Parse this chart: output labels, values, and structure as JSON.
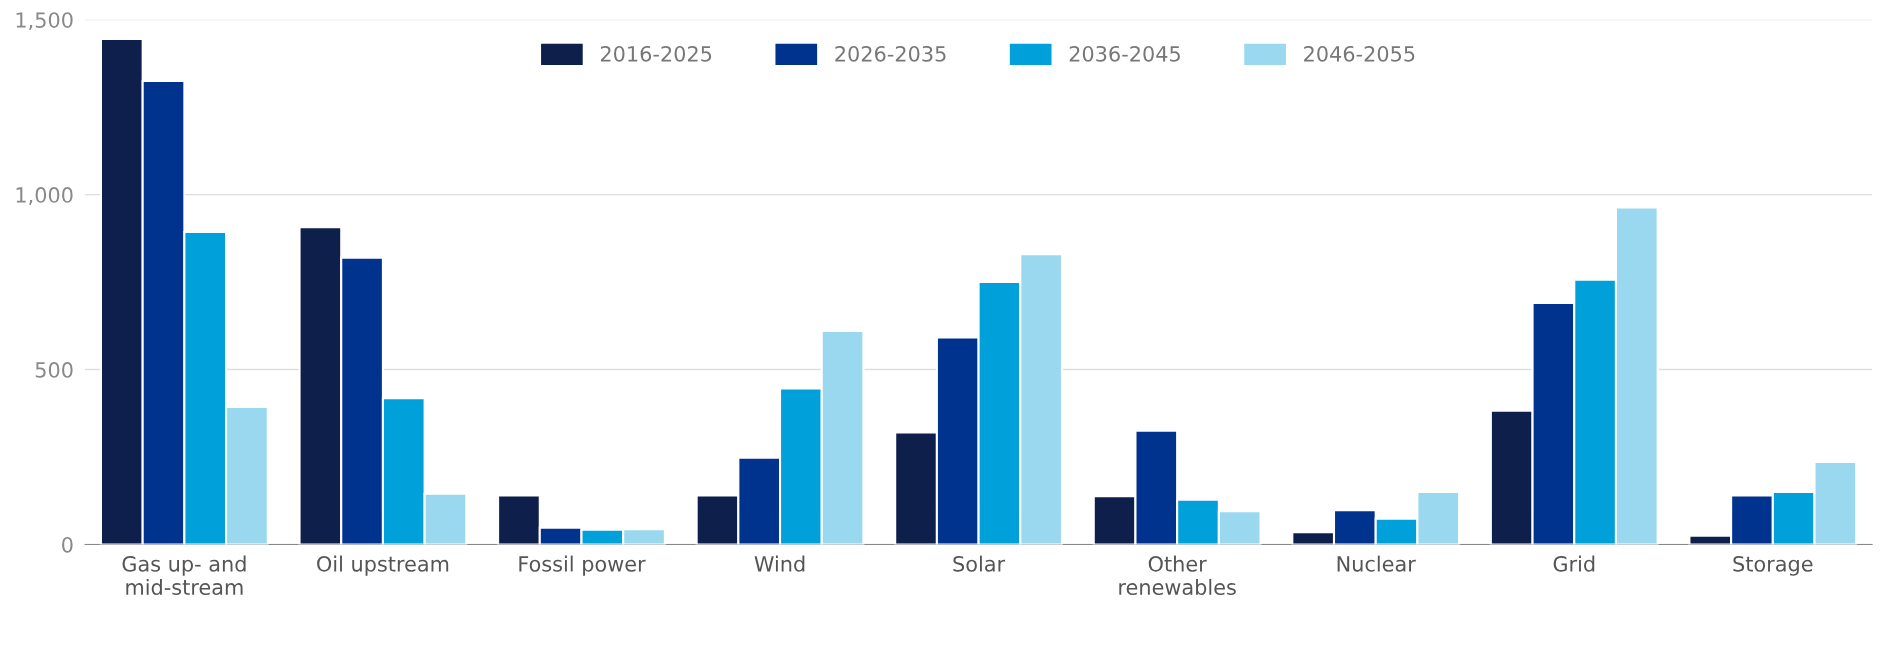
{
  "chart_data": {
    "type": "bar",
    "categories": [
      "Gas up- and\nmid-stream",
      "Oil upstream",
      "Fossil power",
      "Wind",
      "Solar",
      "Other\nrenewables",
      "Nuclear",
      "Grid",
      "Storage"
    ],
    "series": [
      {
        "name": "2016-2025",
        "color": "#0f1f4b",
        "values": [
          1445,
          907,
          140,
          140,
          320,
          138,
          35,
          382,
          25
        ]
      },
      {
        "name": "2026-2035",
        "color": "#00338d",
        "values": [
          1325,
          820,
          48,
          248,
          592,
          325,
          98,
          690,
          140
        ]
      },
      {
        "name": "2036-2045",
        "color": "#00a0db",
        "values": [
          893,
          418,
          42,
          446,
          750,
          128,
          74,
          757,
          150
        ]
      },
      {
        "name": "2046-2055",
        "color": "#99d8ef",
        "values": [
          393,
          145,
          44,
          610,
          830,
          95,
          150,
          963,
          236
        ]
      }
    ],
    "ylim": [
      0,
      1500
    ],
    "yticks": [
      0,
      500,
      {
        "value": 1000,
        "label": "1,000"
      },
      {
        "value": 1500,
        "label": "1,500"
      }
    ],
    "grid": "y",
    "legend": "top"
  }
}
